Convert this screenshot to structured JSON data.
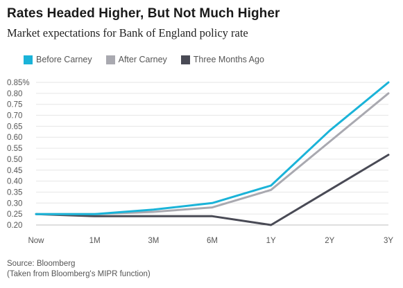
{
  "header": {
    "title": "Rates Headed Higher, But Not Much Higher",
    "subtitle": "Market expectations for Bank of England policy rate"
  },
  "footer": {
    "source": "Source: Bloomberg",
    "note": "(Taken from Bloomberg's MIPR function)"
  },
  "chart_data": {
    "type": "line",
    "title": "Rates Headed Higher, But Not Much Higher",
    "subtitle": "Market expectations for Bank of England policy rate",
    "xlabel": "",
    "ylabel": "",
    "categories": [
      "Now",
      "1M",
      "3M",
      "6M",
      "1Y",
      "2Y",
      "3Y"
    ],
    "y_ticks": [
      "0.20",
      "0.25",
      "0.30",
      "0.35",
      "0.40",
      "0.45",
      "0.50",
      "0.55",
      "0.60",
      "0.65",
      "0.70",
      "0.75",
      "0.80",
      "0.85%"
    ],
    "ylim": [
      0.2,
      0.85
    ],
    "grid": true,
    "legend_position": "top-left",
    "series": [
      {
        "name": "Before Carney",
        "color": "#1ab3d8",
        "values": [
          0.25,
          0.25,
          0.27,
          0.3,
          0.38,
          0.63,
          0.85
        ]
      },
      {
        "name": "After Carney",
        "color": "#a9a9b0",
        "values": [
          0.25,
          0.25,
          0.26,
          0.28,
          0.36,
          0.58,
          0.8
        ]
      },
      {
        "name": "Three Months Ago",
        "color": "#494a55",
        "values": [
          0.25,
          0.24,
          0.24,
          0.24,
          0.2,
          0.36,
          0.52
        ]
      }
    ]
  }
}
